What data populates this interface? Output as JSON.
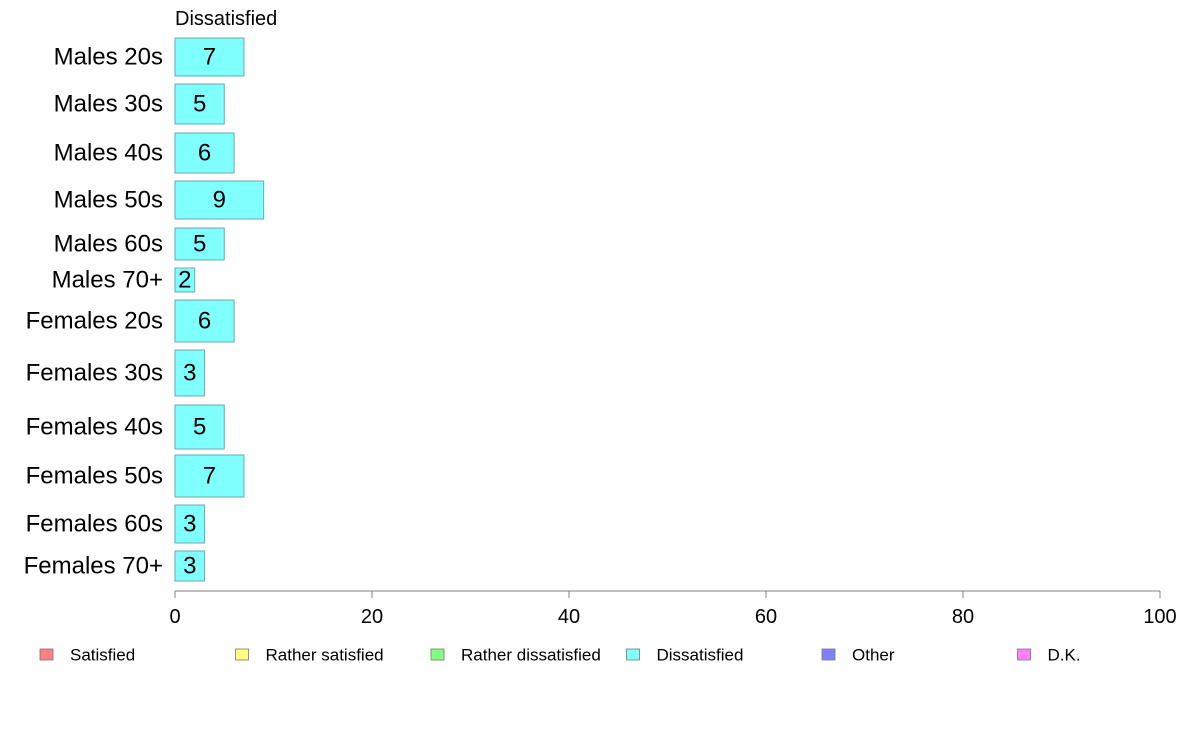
{
  "chart_data": {
    "type": "bar",
    "orientation": "horizontal",
    "title": "Dissatisfied",
    "categories": [
      "Males 20s",
      "Males 30s",
      "Males 40s",
      "Males 50s",
      "Males 60s",
      "Males 70+",
      "Females 20s",
      "Females 30s",
      "Females 40s",
      "Females 50s",
      "Females 60s",
      "Females 70+"
    ],
    "series": [
      {
        "name": "Dissatisfied",
        "color": "#80ffff",
        "values": [
          7,
          5,
          6,
          9,
          5,
          2,
          6,
          3,
          5,
          7,
          3,
          3
        ]
      }
    ],
    "xlim": [
      0,
      100
    ],
    "xticks": [
      "0",
      "20",
      "40",
      "60",
      "80",
      "100"
    ],
    "grid": false,
    "legend_position": "bottom",
    "legend": [
      {
        "label": "Satisfied",
        "color": "#ff8080"
      },
      {
        "label": "Rather satisfied",
        "color": "#ffff80"
      },
      {
        "label": "Rather dissatisfied",
        "color": "#80ff80"
      },
      {
        "label": "Dissatisfied",
        "color": "#80ffff"
      },
      {
        "label": "Other",
        "color": "#8080ff"
      },
      {
        "label": "D.K.",
        "color": "#ff80ff"
      }
    ]
  }
}
